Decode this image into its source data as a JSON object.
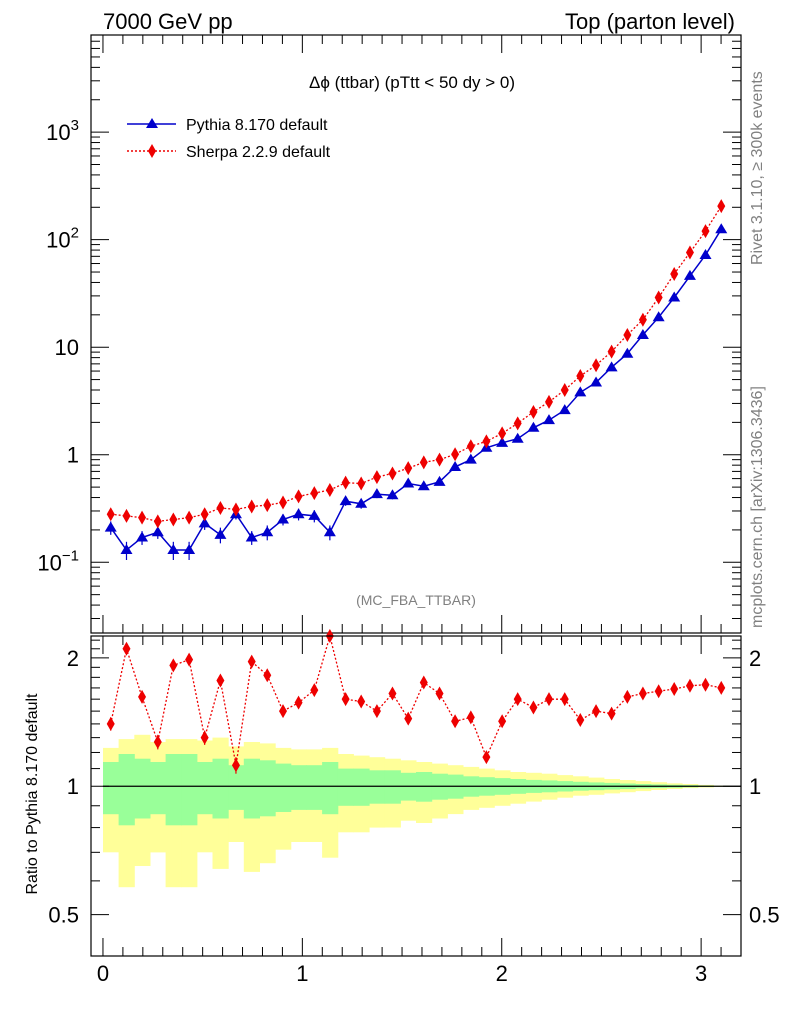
{
  "header": {
    "left": "7000 GeV pp",
    "right": "Top (parton level)"
  },
  "side": {
    "rivet": "Rivet 3.1.10, ≥ 300k events",
    "mcplots": "mcplots.cern.ch [arXiv:1306.3436]"
  },
  "chart_data": {
    "type": "line",
    "title": "Δϕ (ttbar) (pTtt < 50 dy > 0)",
    "watermark": "(MC_FBA_TTBAR)",
    "xlim": [
      -0.06,
      3.2
    ],
    "ylim": [
      0.022,
      8000
    ],
    "yscale": "log",
    "x_ticks": [
      0,
      1,
      2,
      3
    ],
    "y_ticks": [
      {
        "v": 0.1,
        "base": "10",
        "exp": "−1"
      },
      {
        "v": 1,
        "label": "1"
      },
      {
        "v": 10,
        "label": "10"
      },
      {
        "v": 100,
        "base": "10",
        "exp": "2"
      },
      {
        "v": 1000,
        "base": "10",
        "exp": "3"
      }
    ],
    "bin_edges": [
      0,
      0.0785,
      0.157,
      0.2355,
      0.314,
      0.3925,
      0.471,
      0.5495,
      0.628,
      0.7065,
      0.785,
      0.8635,
      0.942,
      1.0205,
      1.099,
      1.1775,
      1.256,
      1.3345,
      1.413,
      1.4915,
      1.57,
      1.6485,
      1.727,
      1.8055,
      1.884,
      1.9625,
      2.041,
      2.1195,
      2.198,
      2.2765,
      2.355,
      2.4335,
      2.512,
      2.5905,
      2.669,
      2.7475,
      2.826,
      2.9045,
      2.983,
      3.0615,
      3.14
    ],
    "x": [
      0.039,
      0.118,
      0.196,
      0.275,
      0.353,
      0.432,
      0.51,
      0.589,
      0.667,
      0.746,
      0.824,
      0.903,
      0.981,
      1.06,
      1.138,
      1.217,
      1.295,
      1.374,
      1.452,
      1.531,
      1.609,
      1.688,
      1.766,
      1.845,
      1.923,
      2.002,
      2.08,
      2.159,
      2.237,
      2.316,
      2.394,
      2.473,
      2.551,
      2.63,
      2.708,
      2.787,
      2.865,
      2.944,
      3.022,
      3.101
    ],
    "series": [
      {
        "name": "Pythia 8.170 default",
        "color": "#0000cc",
        "marker": "triangle",
        "values": [
          0.21,
          0.13,
          0.17,
          0.19,
          0.13,
          0.13,
          0.23,
          0.18,
          0.28,
          0.17,
          0.19,
          0.25,
          0.28,
          0.27,
          0.19,
          0.37,
          0.35,
          0.43,
          0.42,
          0.54,
          0.51,
          0.56,
          0.77,
          0.9,
          1.16,
          1.29,
          1.41,
          1.78,
          2.1,
          2.6,
          3.8,
          4.7,
          6.5,
          8.7,
          13,
          19,
          29,
          46,
          72,
          125
        ],
        "errors": [
          0.03,
          0.025,
          0.025,
          0.025,
          0.025,
          0.025,
          0.03,
          0.03,
          0.03,
          0.025,
          0.03,
          0.03,
          0.035,
          0.035,
          0.03,
          0.035,
          0.035,
          0.035,
          0.035,
          0.04,
          0.04,
          0.04,
          0.05,
          0.05,
          0.06,
          0.06,
          0.07,
          0.08,
          0.09,
          0.1,
          0.14,
          0.16,
          0.2,
          0.25,
          0.35,
          0.45,
          0.6,
          0.9,
          1.3,
          2
        ]
      },
      {
        "name": "Sherpa 2.2.9 default",
        "color": "#ee0000",
        "marker": "diamond",
        "values": [
          0.28,
          0.27,
          0.26,
          0.24,
          0.25,
          0.26,
          0.28,
          0.32,
          0.31,
          0.33,
          0.34,
          0.36,
          0.41,
          0.44,
          0.47,
          0.55,
          0.54,
          0.62,
          0.67,
          0.75,
          0.85,
          0.9,
          1.01,
          1.2,
          1.33,
          1.58,
          1.96,
          2.5,
          3.1,
          4.0,
          5.4,
          6.8,
          9.1,
          13,
          18,
          29,
          48,
          76,
          120,
          205
        ],
        "errors": [
          0.015,
          0.015,
          0.015,
          0.015,
          0.015,
          0.015,
          0.015,
          0.015,
          0.015,
          0.015,
          0.015,
          0.02,
          0.02,
          0.02,
          0.02,
          0.025,
          0.025,
          0.025,
          0.03,
          0.03,
          0.03,
          0.035,
          0.04,
          0.045,
          0.05,
          0.06,
          0.07,
          0.09,
          0.1,
          0.12,
          0.15,
          0.2,
          0.25,
          0.3,
          0.4,
          0.6,
          0.9,
          1.3,
          2,
          3
        ]
      }
    ],
    "ratio": {
      "ylabel": "Ratio to Pythia 8.170 default",
      "ylim": [
        0.4,
        2.25
      ],
      "y_ticks": [
        0.5,
        1,
        2
      ],
      "reference_line": 1,
      "values": [
        1.4,
        2.1,
        1.62,
        1.27,
        1.92,
        1.98,
        1.3,
        1.77,
        1.12,
        1.96,
        1.82,
        1.5,
        1.57,
        1.68,
        2.35,
        1.6,
        1.58,
        1.5,
        1.65,
        1.44,
        1.75,
        1.65,
        1.42,
        1.45,
        1.17,
        1.42,
        1.6,
        1.53,
        1.6,
        1.6,
        1.43,
        1.5,
        1.48,
        1.62,
        1.65,
        1.67,
        1.69,
        1.72,
        1.73,
        1.7
      ],
      "errors": [
        0.05,
        0.06,
        0.05,
        0.05,
        0.06,
        0.06,
        0.05,
        0.05,
        0.05,
        0.06,
        0.05,
        0.04,
        0.04,
        0.04,
        0.07,
        0.04,
        0.04,
        0.04,
        0.04,
        0.035,
        0.035,
        0.035,
        0.03,
        0.03,
        0.025,
        0.025,
        0.025,
        0.02,
        0.02,
        0.02,
        0.02,
        0.02,
        0.02,
        0.02,
        0.02,
        0.02,
        0.02,
        0.02,
        0.02,
        0.02
      ],
      "band_inner": {
        "color": "#99ff99",
        "low": [
          0.86,
          0.81,
          0.84,
          0.86,
          0.81,
          0.81,
          0.86,
          0.84,
          0.88,
          0.84,
          0.85,
          0.87,
          0.88,
          0.88,
          0.86,
          0.9,
          0.9,
          0.91,
          0.91,
          0.925,
          0.92,
          0.93,
          0.935,
          0.945,
          0.95,
          0.955,
          0.96,
          0.965,
          0.968,
          0.972,
          0.976,
          0.979,
          0.982,
          0.985,
          0.988,
          0.99,
          0.992,
          0.994,
          0.996,
          0.998
        ],
        "high": [
          1.14,
          1.19,
          1.16,
          1.14,
          1.19,
          1.19,
          1.14,
          1.16,
          1.12,
          1.16,
          1.15,
          1.13,
          1.12,
          1.12,
          1.14,
          1.1,
          1.1,
          1.09,
          1.09,
          1.075,
          1.08,
          1.07,
          1.065,
          1.055,
          1.05,
          1.045,
          1.04,
          1.035,
          1.032,
          1.028,
          1.024,
          1.021,
          1.018,
          1.015,
          1.012,
          1.01,
          1.008,
          1.006,
          1.004,
          1.002
        ]
      },
      "band_outer": {
        "color": "#ffff99",
        "low": [
          0.7,
          0.58,
          0.65,
          0.7,
          0.58,
          0.58,
          0.7,
          0.64,
          0.74,
          0.63,
          0.66,
          0.71,
          0.74,
          0.74,
          0.68,
          0.78,
          0.78,
          0.8,
          0.8,
          0.83,
          0.82,
          0.84,
          0.86,
          0.88,
          0.89,
          0.9,
          0.91,
          0.92,
          0.93,
          0.94,
          0.95,
          0.955,
          0.962,
          0.968,
          0.974,
          0.98,
          0.985,
          0.99,
          0.993,
          0.997
        ],
        "high": [
          1.23,
          1.29,
          1.32,
          1.27,
          1.29,
          1.29,
          1.28,
          1.3,
          1.24,
          1.27,
          1.26,
          1.23,
          1.22,
          1.22,
          1.23,
          1.19,
          1.18,
          1.17,
          1.16,
          1.15,
          1.14,
          1.13,
          1.12,
          1.11,
          1.1,
          1.09,
          1.08,
          1.075,
          1.07,
          1.062,
          1.055,
          1.048,
          1.04,
          1.034,
          1.028,
          1.022,
          1.016,
          1.012,
          1.007,
          1.003
        ]
      }
    }
  }
}
